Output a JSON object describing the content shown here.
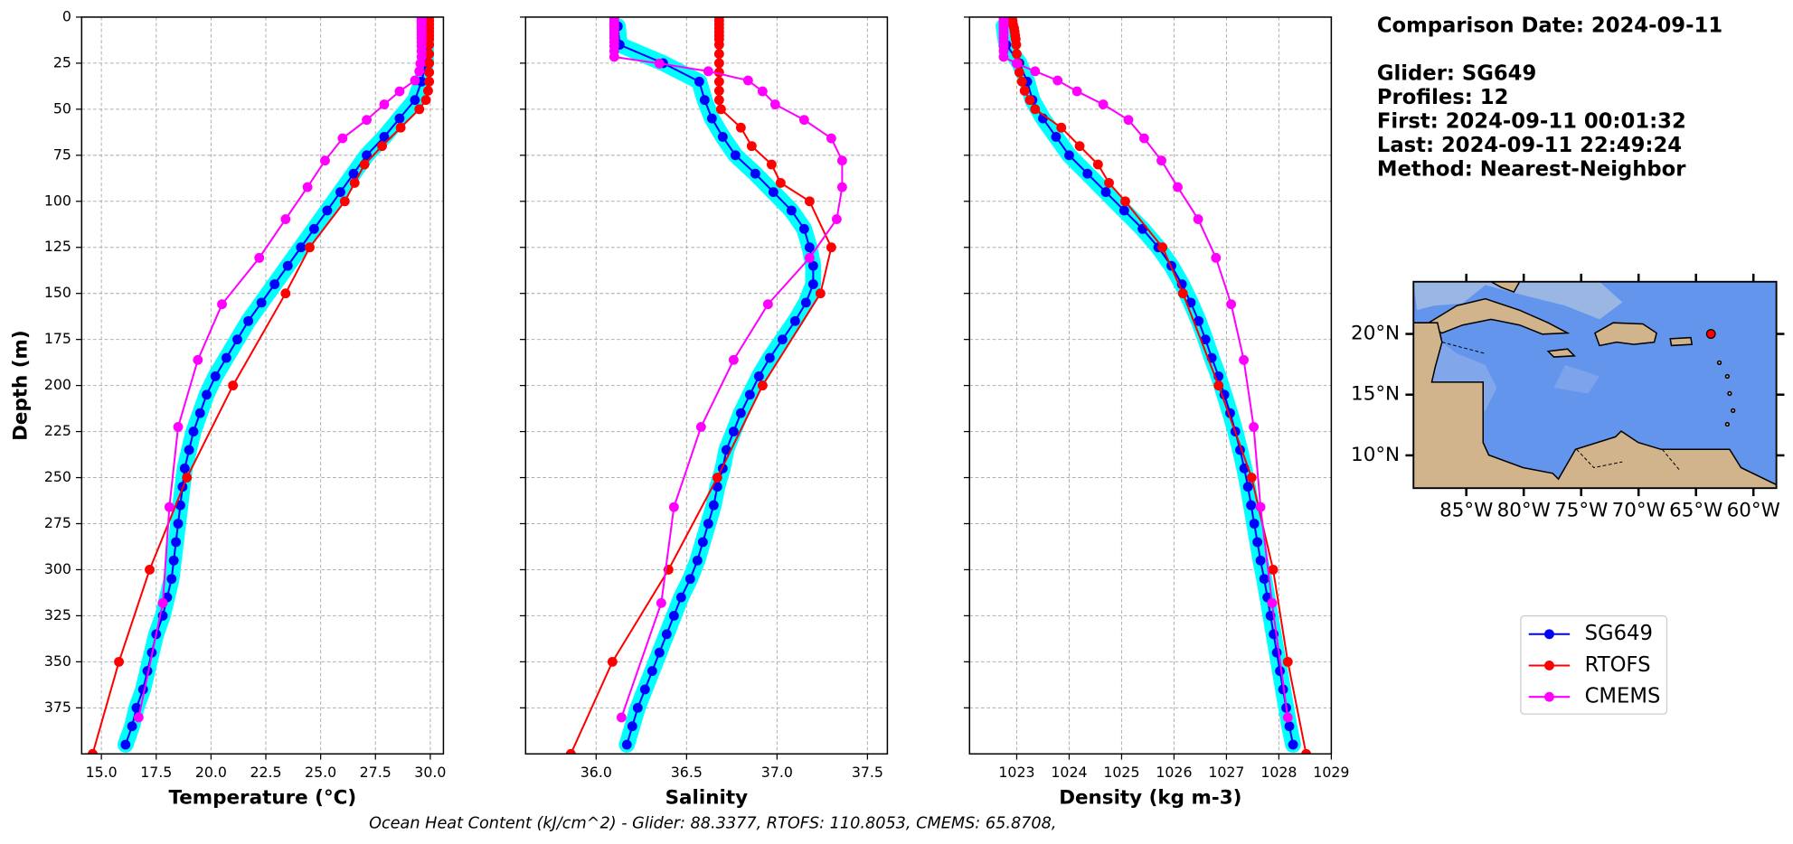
{
  "chart_data": [
    {
      "type": "line",
      "x_label": "Temperature (°C)",
      "y_label": "Depth (m)",
      "xlim": [
        14.1,
        30.6
      ],
      "xticks": [
        {
          "value": 15,
          "label": "15.0"
        },
        17.5,
        {
          "value": 20,
          "label": "20.0"
        },
        22.5,
        {
          "value": 25,
          "label": "25.0"
        },
        27.5,
        {
          "value": 30,
          "label": "30.0"
        }
      ],
      "ylim": [
        0,
        400
      ],
      "y_inverted": true,
      "yticks": [
        0,
        25,
        50,
        75,
        100,
        125,
        150,
        175,
        200,
        225,
        250,
        275,
        300,
        325,
        350,
        375
      ],
      "grid": true,
      "series": [
        {
          "name": "SG649",
          "color": "#0000ff",
          "band_color": "#00ffff",
          "x": [
            29.8,
            29.8,
            29.8,
            29.6,
            29.3,
            28.6,
            27.9,
            27.1,
            26.5,
            25.9,
            25.3,
            24.7,
            24.1,
            23.5,
            22.9,
            22.3,
            21.7,
            21.2,
            20.7,
            20.2,
            19.8,
            19.5,
            19.2,
            19.0,
            18.8,
            18.7,
            18.6,
            18.5,
            18.4,
            18.3,
            18.2,
            18.0,
            17.8,
            17.5,
            17.3,
            17.1,
            16.9,
            16.6,
            16.4,
            16.1
          ],
          "y": [
            5,
            15,
            25,
            35,
            45,
            55,
            65,
            75,
            85,
            95,
            105,
            115,
            125,
            135,
            145,
            155,
            165,
            175,
            185,
            195,
            205,
            215,
            225,
            235,
            245,
            255,
            265,
            275,
            285,
            295,
            305,
            315,
            325,
            335,
            345,
            355,
            365,
            375,
            385,
            395
          ]
        },
        {
          "name": "RTOFS",
          "color": "#ff0000",
          "x": [
            29.95,
            29.95,
            29.95,
            29.95,
            29.95,
            29.95,
            29.95,
            29.95,
            29.95,
            29.95,
            29.95,
            29.95,
            29.9,
            29.8,
            29.5,
            28.65,
            27.8,
            27.0,
            26.55,
            26.1,
            24.5,
            23.4,
            21.0,
            18.9,
            17.2,
            15.8,
            14.6
          ],
          "y": [
            0,
            2,
            4,
            6,
            8,
            10,
            12,
            15,
            20,
            25,
            30,
            35,
            40,
            45,
            50,
            60,
            70,
            80,
            90,
            100,
            125,
            150,
            200,
            250,
            300,
            350,
            400
          ]
        },
        {
          "name": "CMEMS",
          "color": "#ff00ff",
          "x": [
            29.6,
            29.6,
            29.6,
            29.6,
            29.6,
            29.6,
            29.6,
            29.6,
            29.6,
            29.6,
            29.6,
            29.6,
            29.6,
            29.55,
            29.5,
            29.3,
            28.6,
            27.9,
            27.1,
            26.0,
            25.2,
            24.4,
            23.4,
            22.2,
            20.5,
            19.4,
            18.5,
            18.1,
            17.8,
            16.7
          ],
          "y": [
            0.5,
            1.5,
            2.6,
            3.8,
            5.1,
            6.4,
            7.9,
            9.6,
            11.4,
            13.5,
            15.8,
            18.5,
            21.6,
            25.2,
            29.4,
            34.4,
            40.3,
            47.4,
            55.8,
            65.8,
            77.9,
            92.3,
            109.7,
            130.7,
            155.9,
            186.1,
            222.5,
            266.0,
            318.1,
            380.2
          ]
        }
      ]
    },
    {
      "type": "line",
      "x_label": "Salinity",
      "sharey": true,
      "xlim": [
        35.61,
        37.61
      ],
      "xticks": [
        {
          "value": 36,
          "label": "36.0"
        },
        36.5,
        {
          "value": 37,
          "label": "37.0"
        },
        37.5
      ],
      "grid": true,
      "series": [
        {
          "color": "#0000ff",
          "band_color": "#00ffff",
          "x": [
            36.12,
            36.13,
            36.37,
            36.57,
            36.6,
            36.64,
            36.7,
            36.77,
            36.88,
            36.98,
            37.08,
            37.15,
            37.18,
            37.2,
            37.2,
            37.16,
            37.1,
            37.03,
            36.96,
            36.9,
            36.85,
            36.8,
            36.76,
            36.72,
            36.7,
            36.67,
            36.65,
            36.62,
            36.59,
            36.56,
            36.52,
            36.47,
            36.43,
            36.39,
            36.35,
            36.31,
            36.27,
            36.23,
            36.2,
            36.17
          ],
          "y": [
            5,
            15,
            25,
            35,
            45,
            55,
            65,
            75,
            85,
            95,
            105,
            115,
            125,
            135,
            145,
            155,
            165,
            175,
            185,
            195,
            205,
            215,
            225,
            235,
            245,
            255,
            265,
            275,
            285,
            295,
            305,
            315,
            325,
            335,
            345,
            355,
            365,
            375,
            385,
            395
          ]
        },
        {
          "color": "#ff0000",
          "x": [
            36.68,
            36.68,
            36.68,
            36.68,
            36.68,
            36.68,
            36.68,
            36.68,
            36.68,
            36.68,
            36.68,
            36.68,
            36.68,
            36.68,
            36.69,
            36.8,
            36.86,
            36.97,
            37.02,
            37.18,
            37.3,
            37.24,
            36.92,
            36.67,
            36.4,
            36.09,
            35.86
          ],
          "y": [
            0,
            2,
            4,
            6,
            8,
            10,
            12,
            15,
            20,
            25,
            30,
            35,
            40,
            45,
            50,
            60,
            70,
            80,
            90,
            100,
            125,
            150,
            200,
            250,
            300,
            350,
            400
          ]
        },
        {
          "color": "#ff00ff",
          "x": [
            36.1,
            36.1,
            36.1,
            36.1,
            36.1,
            36.1,
            36.1,
            36.1,
            36.1,
            36.1,
            36.1,
            36.1,
            36.1,
            36.35,
            36.62,
            36.84,
            36.92,
            36.99,
            37.15,
            37.3,
            37.36,
            37.36,
            37.33,
            37.18,
            36.95,
            36.76,
            36.58,
            36.43,
            36.36,
            36.14
          ],
          "y": [
            0.5,
            1.5,
            2.6,
            3.8,
            5.1,
            6.4,
            7.9,
            9.6,
            11.4,
            13.5,
            15.8,
            18.5,
            21.6,
            25.2,
            29.4,
            34.4,
            40.3,
            47.4,
            55.8,
            65.8,
            77.9,
            92.3,
            109.7,
            130.7,
            155.9,
            186.1,
            222.5,
            266.0,
            318.1,
            380.2
          ]
        }
      ]
    },
    {
      "type": "line",
      "x_label": "Density (kg m-3)",
      "sharey": true,
      "xlim": [
        1022.1,
        1029
      ],
      "xticks": [
        1023,
        1024,
        1025,
        1026,
        1027,
        1028,
        1029
      ],
      "grid": true,
      "series": [
        {
          "color": "#0000ff",
          "band_color": "#00ffff",
          "x": [
            1022.75,
            1022.8,
            1023.05,
            1023.2,
            1023.3,
            1023.5,
            1023.75,
            1024.0,
            1024.35,
            1024.7,
            1025.05,
            1025.4,
            1025.7,
            1025.95,
            1026.15,
            1026.32,
            1026.47,
            1026.6,
            1026.72,
            1026.85,
            1026.96,
            1027.07,
            1027.17,
            1027.26,
            1027.34,
            1027.41,
            1027.47,
            1027.53,
            1027.59,
            1027.65,
            1027.72,
            1027.78,
            1027.84,
            1027.9,
            1027.96,
            1028.02,
            1028.08,
            1028.14,
            1028.2,
            1028.27
          ],
          "y": [
            5,
            15,
            25,
            35,
            45,
            55,
            65,
            75,
            85,
            95,
            105,
            115,
            125,
            135,
            145,
            155,
            165,
            175,
            185,
            195,
            205,
            215,
            225,
            235,
            245,
            255,
            265,
            275,
            285,
            295,
            305,
            315,
            325,
            335,
            345,
            355,
            365,
            375,
            385,
            395
          ]
        },
        {
          "color": "#ff0000",
          "x": [
            1022.9,
            1022.92,
            1022.93,
            1022.95,
            1022.96,
            1022.97,
            1022.98,
            1022.99,
            1023.0,
            1023.02,
            1023.05,
            1023.1,
            1023.15,
            1023.25,
            1023.35,
            1023.85,
            1024.2,
            1024.55,
            1024.76,
            1025.07,
            1025.78,
            1026.17,
            1026.85,
            1027.48,
            1027.89,
            1028.17,
            1028.52
          ],
          "y": [
            0,
            2,
            4,
            6,
            8,
            10,
            12,
            15,
            20,
            25,
            30,
            35,
            40,
            45,
            50,
            60,
            70,
            80,
            90,
            100,
            125,
            150,
            200,
            250,
            300,
            350,
            400
          ]
        },
        {
          "color": "#ff00ff",
          "x": [
            1022.75,
            1022.75,
            1022.75,
            1022.75,
            1022.75,
            1022.75,
            1022.75,
            1022.75,
            1022.75,
            1022.75,
            1022.75,
            1022.75,
            1022.75,
            1023.0,
            1023.35,
            1023.78,
            1024.15,
            1024.65,
            1025.13,
            1025.43,
            1025.76,
            1026.07,
            1026.46,
            1026.8,
            1027.09,
            1027.33,
            1027.52,
            1027.65,
            1027.87,
            1028.17
          ],
          "y": [
            0.5,
            1.5,
            2.6,
            3.8,
            5.1,
            6.4,
            7.9,
            9.6,
            11.4,
            13.5,
            15.8,
            18.5,
            21.6,
            25.2,
            29.4,
            34.4,
            40.3,
            47.4,
            55.8,
            65.8,
            77.9,
            92.3,
            109.7,
            130.7,
            155.9,
            186.1,
            222.5,
            266.0,
            318.1,
            380.2
          ]
        }
      ]
    },
    {
      "type": "map",
      "xlim": [
        -89.6,
        -58
      ],
      "ylim": [
        7.3,
        24.3
      ],
      "xticks": [
        {
          "value": -85,
          "label": "85°W"
        },
        {
          "value": -80,
          "label": "80°W"
        },
        {
          "value": -75,
          "label": "75°W"
        },
        {
          "value": -70,
          "label": "70°W"
        },
        {
          "value": -65,
          "label": "65°W"
        },
        {
          "value": -60,
          "label": "60°W"
        }
      ],
      "yticks": [
        {
          "value": 10,
          "label": "10°N"
        },
        {
          "value": 15,
          "label": "15°N"
        },
        {
          "value": 20,
          "label": "20°N"
        }
      ],
      "marker": {
        "lon": -63.7,
        "lat": 20.0,
        "color": "#ff0000"
      }
    }
  ],
  "info": [
    "Comparison Date: 2024-09-11",
    "Glider: SG649",
    "Profiles: 12",
    "First: 2024-09-11 00:01:32",
    "Last: 2024-09-11 22:49:24",
    "Method: Nearest-Neighbor"
  ],
  "footer": "Ocean Heat Content (kJ/cm^2) - Glider: 88.3377,  RTOFS: 110.8053,  CMEMS: 65.8708,"
}
